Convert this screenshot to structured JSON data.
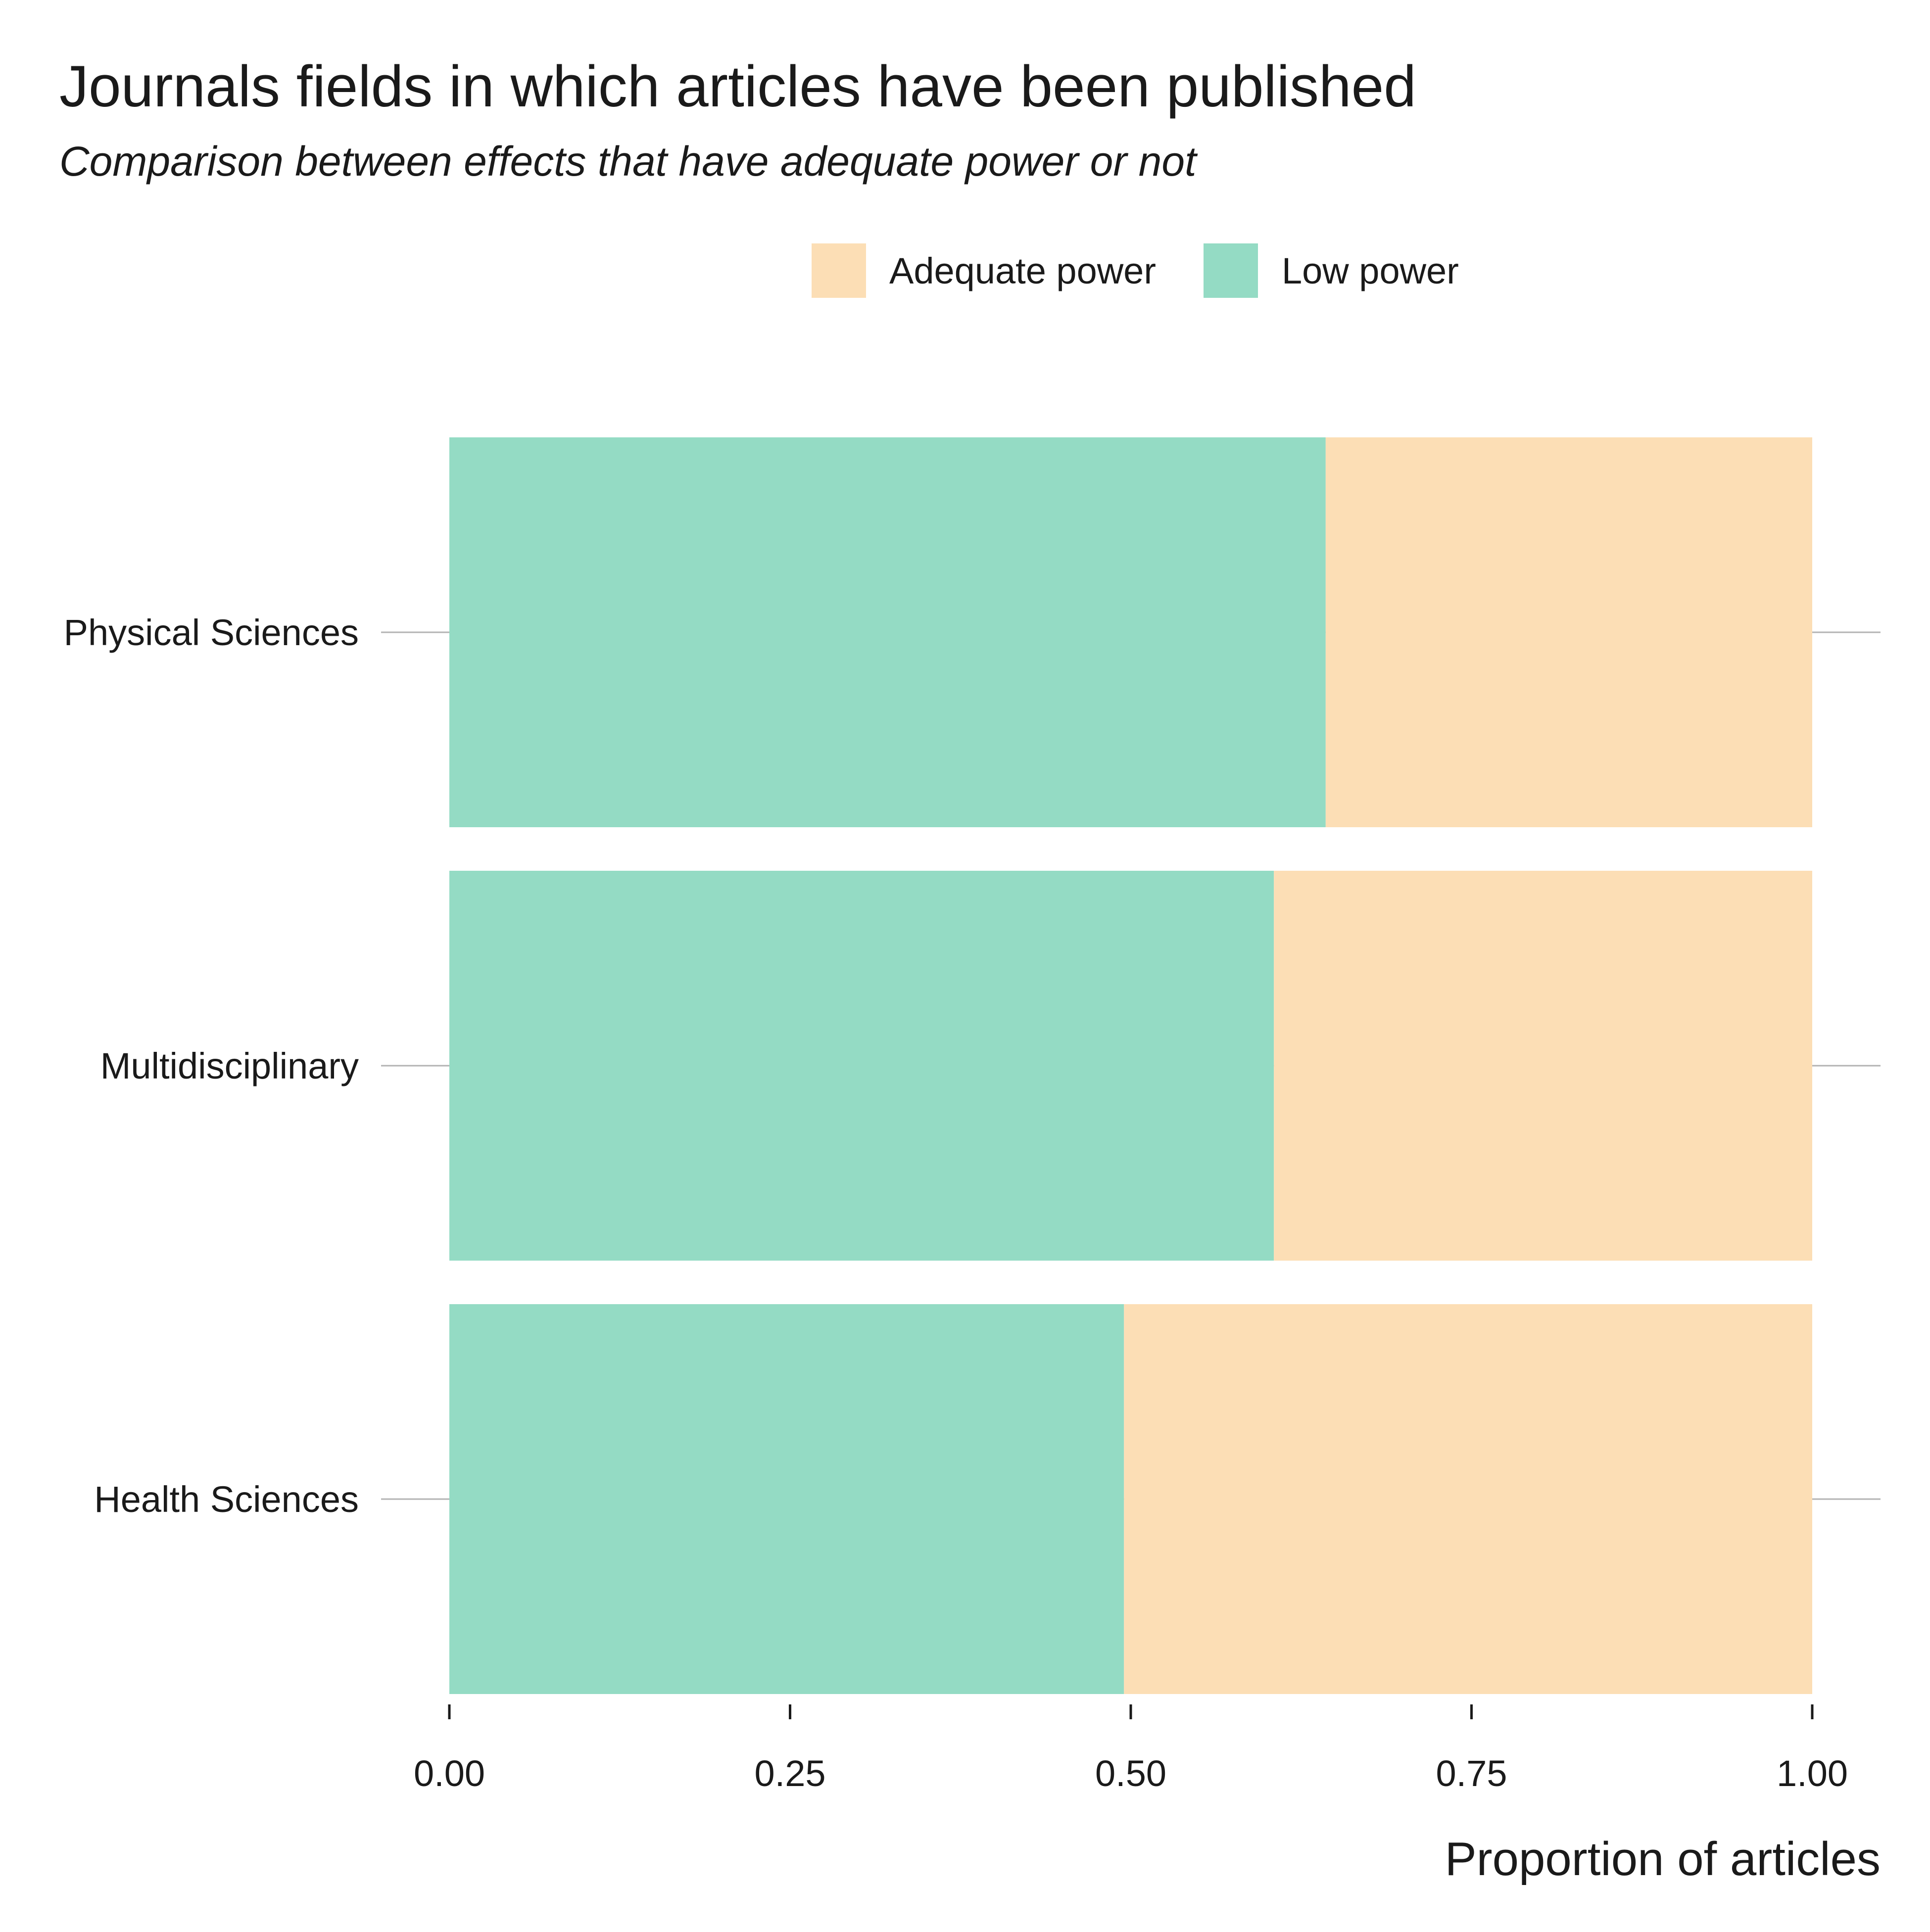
{
  "chart_data": {
    "type": "bar",
    "orientation": "horizontal",
    "stacked": true,
    "title": "Journals fields in which articles have been published",
    "subtitle": "Comparison between effects that have adequate power or not",
    "xlabel": "Proportion of articles",
    "ylabel": "",
    "xlim": [
      0,
      1
    ],
    "x_ticks": [
      "0.00",
      "0.25",
      "0.50",
      "0.75",
      "1.00"
    ],
    "x_tick_values": [
      0,
      0.25,
      0.5,
      0.75,
      1.0
    ],
    "categories": [
      "Physical Sciences",
      "Multidisciplinary",
      "Health Sciences"
    ],
    "series": [
      {
        "name": "Low power",
        "color": "#94dbc4",
        "values": [
          0.643,
          0.605,
          0.495
        ]
      },
      {
        "name": "Adequate power",
        "color": "#fcdeb5",
        "values": [
          0.357,
          0.395,
          0.505
        ]
      }
    ],
    "legend": {
      "position": "top",
      "items": [
        {
          "label": "Adequate power",
          "color": "#fcdeb5"
        },
        {
          "label": "Low power",
          "color": "#94dbc4"
        }
      ]
    },
    "grid": false
  }
}
